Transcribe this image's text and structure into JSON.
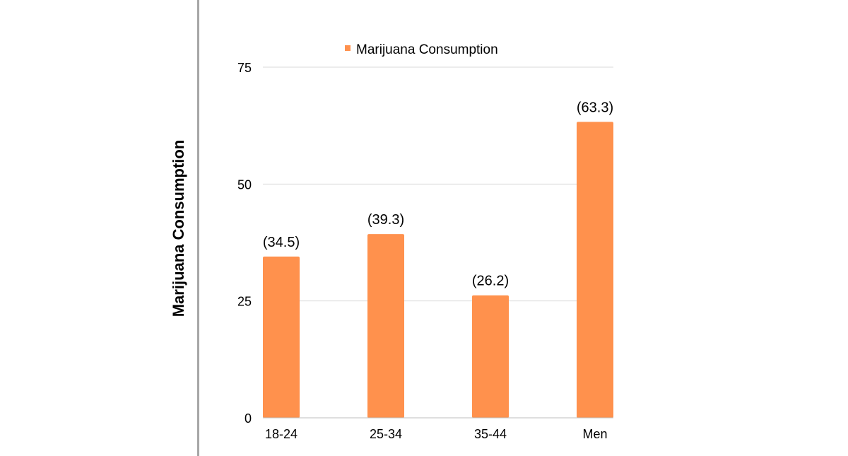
{
  "chart_data": {
    "type": "bar",
    "categories": [
      "18-24",
      "25-34",
      "35-44",
      "Men"
    ],
    "series": [
      {
        "name": "Marijuana Consumption",
        "values": [
          34.5,
          39.3,
          26.2,
          63.3
        ],
        "labels": [
          "(34.5)",
          "(39.3)",
          "(26.2)",
          "(63.3)"
        ],
        "color": "#ff914d"
      }
    ],
    "ylabel": "Marijuana Consumption",
    "ylim": [
      0,
      75
    ],
    "yticks": [
      0,
      25,
      50,
      75
    ],
    "grid": true,
    "legend_position": "top"
  },
  "colors": {
    "bar": "#ff914d",
    "grid": "#d9d9d9",
    "axis": "#bfbfbf",
    "divider": "#a6a6a6"
  }
}
